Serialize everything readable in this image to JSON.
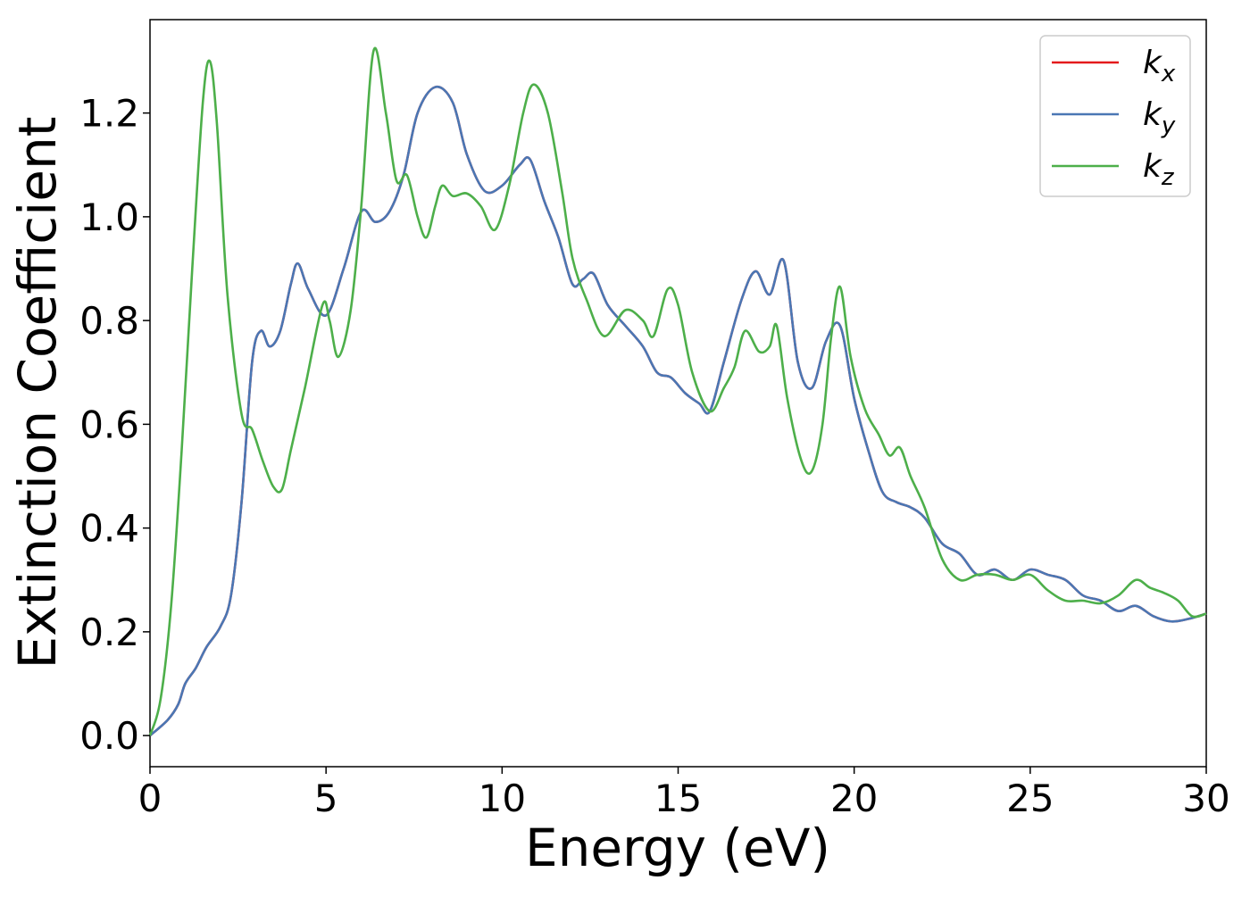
{
  "chart_data": {
    "type": "line",
    "xlabel": "Energy (eV)",
    "ylabel": "Extinction Coefficient",
    "xlim": [
      0,
      30
    ],
    "ylim": [
      -0.06,
      1.38
    ],
    "xticks": [
      0,
      5,
      10,
      15,
      20,
      25,
      30
    ],
    "xtick_labels": [
      "0",
      "5",
      "10",
      "15",
      "20",
      "25",
      "30"
    ],
    "yticks": [
      0.0,
      0.2,
      0.4,
      0.6,
      0.8,
      1.0,
      1.2
    ],
    "ytick_labels": [
      "0.0",
      "0.2",
      "0.4",
      "0.6",
      "0.8",
      "1.0",
      "1.2"
    ],
    "grid": false,
    "legend_position": "top-right",
    "series": [
      {
        "name": "k_x",
        "legend_main": "k",
        "legend_sub": "x",
        "color": "#e41a1c",
        "x": [
          0,
          0.5,
          0.8,
          1.0,
          1.3,
          1.6,
          2.0,
          2.3,
          2.6,
          2.9,
          3.15,
          3.4,
          3.7,
          4.0,
          4.2,
          4.5,
          5.0,
          5.5,
          6.0,
          6.4,
          6.8,
          7.2,
          7.6,
          8.1,
          8.6,
          9.0,
          9.5,
          10.0,
          10.5,
          10.8,
          11.2,
          11.6,
          12.0,
          12.3,
          12.6,
          13.0,
          13.5,
          14.0,
          14.4,
          14.8,
          15.2,
          15.6,
          15.9,
          16.3,
          16.8,
          17.2,
          17.6,
          18.0,
          18.4,
          18.8,
          19.2,
          19.6,
          20.0,
          20.4,
          20.8,
          21.2,
          21.6,
          22.0,
          22.5,
          23.0,
          23.5,
          24.0,
          24.5,
          25.0,
          25.5,
          26.0,
          26.5,
          27.0,
          27.5,
          28.0,
          28.5,
          29.0,
          29.5,
          30.0
        ],
        "y": [
          0.0,
          0.03,
          0.06,
          0.1,
          0.13,
          0.17,
          0.21,
          0.27,
          0.45,
          0.72,
          0.78,
          0.75,
          0.78,
          0.87,
          0.91,
          0.86,
          0.81,
          0.9,
          1.01,
          0.99,
          1.01,
          1.08,
          1.2,
          1.25,
          1.22,
          1.12,
          1.05,
          1.06,
          1.1,
          1.11,
          1.03,
          0.96,
          0.87,
          0.88,
          0.89,
          0.83,
          0.79,
          0.75,
          0.7,
          0.69,
          0.66,
          0.64,
          0.625,
          0.72,
          0.84,
          0.895,
          0.85,
          0.915,
          0.72,
          0.67,
          0.76,
          0.79,
          0.65,
          0.55,
          0.47,
          0.45,
          0.44,
          0.42,
          0.37,
          0.35,
          0.31,
          0.32,
          0.3,
          0.32,
          0.31,
          0.3,
          0.27,
          0.26,
          0.24,
          0.25,
          0.23,
          0.22,
          0.225,
          0.235
        ]
      },
      {
        "name": "k_y",
        "legend_main": "k",
        "legend_sub": "y",
        "color": "#4a77b4",
        "x": [
          0,
          0.5,
          0.8,
          1.0,
          1.3,
          1.6,
          2.0,
          2.3,
          2.6,
          2.9,
          3.15,
          3.4,
          3.7,
          4.0,
          4.2,
          4.5,
          5.0,
          5.5,
          6.0,
          6.4,
          6.8,
          7.2,
          7.6,
          8.1,
          8.6,
          9.0,
          9.5,
          10.0,
          10.5,
          10.8,
          11.2,
          11.6,
          12.0,
          12.3,
          12.6,
          13.0,
          13.5,
          14.0,
          14.4,
          14.8,
          15.2,
          15.6,
          15.9,
          16.3,
          16.8,
          17.2,
          17.6,
          18.0,
          18.4,
          18.8,
          19.2,
          19.6,
          20.0,
          20.4,
          20.8,
          21.2,
          21.6,
          22.0,
          22.5,
          23.0,
          23.5,
          24.0,
          24.5,
          25.0,
          25.5,
          26.0,
          26.5,
          27.0,
          27.5,
          28.0,
          28.5,
          29.0,
          29.5,
          30.0
        ],
        "y": [
          0.0,
          0.03,
          0.06,
          0.1,
          0.13,
          0.17,
          0.21,
          0.27,
          0.45,
          0.72,
          0.78,
          0.75,
          0.78,
          0.87,
          0.91,
          0.86,
          0.81,
          0.9,
          1.01,
          0.99,
          1.01,
          1.08,
          1.2,
          1.25,
          1.22,
          1.12,
          1.05,
          1.06,
          1.1,
          1.11,
          1.03,
          0.96,
          0.87,
          0.88,
          0.89,
          0.83,
          0.79,
          0.75,
          0.7,
          0.69,
          0.66,
          0.64,
          0.625,
          0.72,
          0.84,
          0.895,
          0.85,
          0.915,
          0.72,
          0.67,
          0.76,
          0.79,
          0.65,
          0.55,
          0.47,
          0.45,
          0.44,
          0.42,
          0.37,
          0.35,
          0.31,
          0.32,
          0.3,
          0.32,
          0.31,
          0.3,
          0.27,
          0.26,
          0.24,
          0.25,
          0.23,
          0.22,
          0.225,
          0.235
        ]
      },
      {
        "name": "k_z",
        "legend_main": "k",
        "legend_sub": "z",
        "color": "#4daf4a",
        "x": [
          0,
          0.3,
          0.6,
          0.9,
          1.2,
          1.5,
          1.7,
          1.9,
          2.2,
          2.6,
          2.9,
          3.2,
          3.5,
          3.75,
          4.0,
          4.4,
          4.9,
          5.1,
          5.35,
          5.7,
          6.0,
          6.35,
          6.7,
          7.0,
          7.3,
          7.6,
          7.85,
          8.1,
          8.3,
          8.6,
          9.0,
          9.4,
          9.8,
          10.2,
          10.6,
          10.9,
          11.3,
          11.7,
          12.0,
          12.4,
          12.9,
          13.5,
          14.0,
          14.3,
          14.7,
          15.0,
          15.4,
          15.9,
          16.3,
          16.6,
          16.9,
          17.3,
          17.6,
          17.8,
          18.1,
          18.5,
          18.8,
          19.1,
          19.35,
          19.6,
          19.9,
          20.3,
          20.7,
          21.0,
          21.3,
          21.6,
          22.0,
          22.5,
          23.0,
          23.5,
          24.0,
          24.5,
          25.0,
          25.5,
          26.0,
          26.5,
          27.0,
          27.5,
          28.0,
          28.4,
          28.8,
          29.2,
          29.6,
          30.0
        ],
        "y": [
          0.0,
          0.07,
          0.25,
          0.55,
          0.9,
          1.22,
          1.3,
          1.18,
          0.85,
          0.62,
          0.59,
          0.53,
          0.48,
          0.475,
          0.55,
          0.67,
          0.83,
          0.8,
          0.73,
          0.82,
          1.02,
          1.32,
          1.2,
          1.07,
          1.08,
          1.0,
          0.96,
          1.02,
          1.06,
          1.04,
          1.045,
          1.02,
          0.975,
          1.06,
          1.2,
          1.255,
          1.2,
          1.05,
          0.92,
          0.84,
          0.77,
          0.82,
          0.8,
          0.77,
          0.86,
          0.83,
          0.7,
          0.625,
          0.67,
          0.71,
          0.78,
          0.74,
          0.75,
          0.79,
          0.65,
          0.53,
          0.51,
          0.6,
          0.77,
          0.865,
          0.73,
          0.63,
          0.58,
          0.54,
          0.555,
          0.5,
          0.44,
          0.34,
          0.3,
          0.31,
          0.31,
          0.3,
          0.31,
          0.28,
          0.26,
          0.26,
          0.255,
          0.27,
          0.3,
          0.285,
          0.275,
          0.26,
          0.23,
          0.235
        ]
      }
    ]
  }
}
